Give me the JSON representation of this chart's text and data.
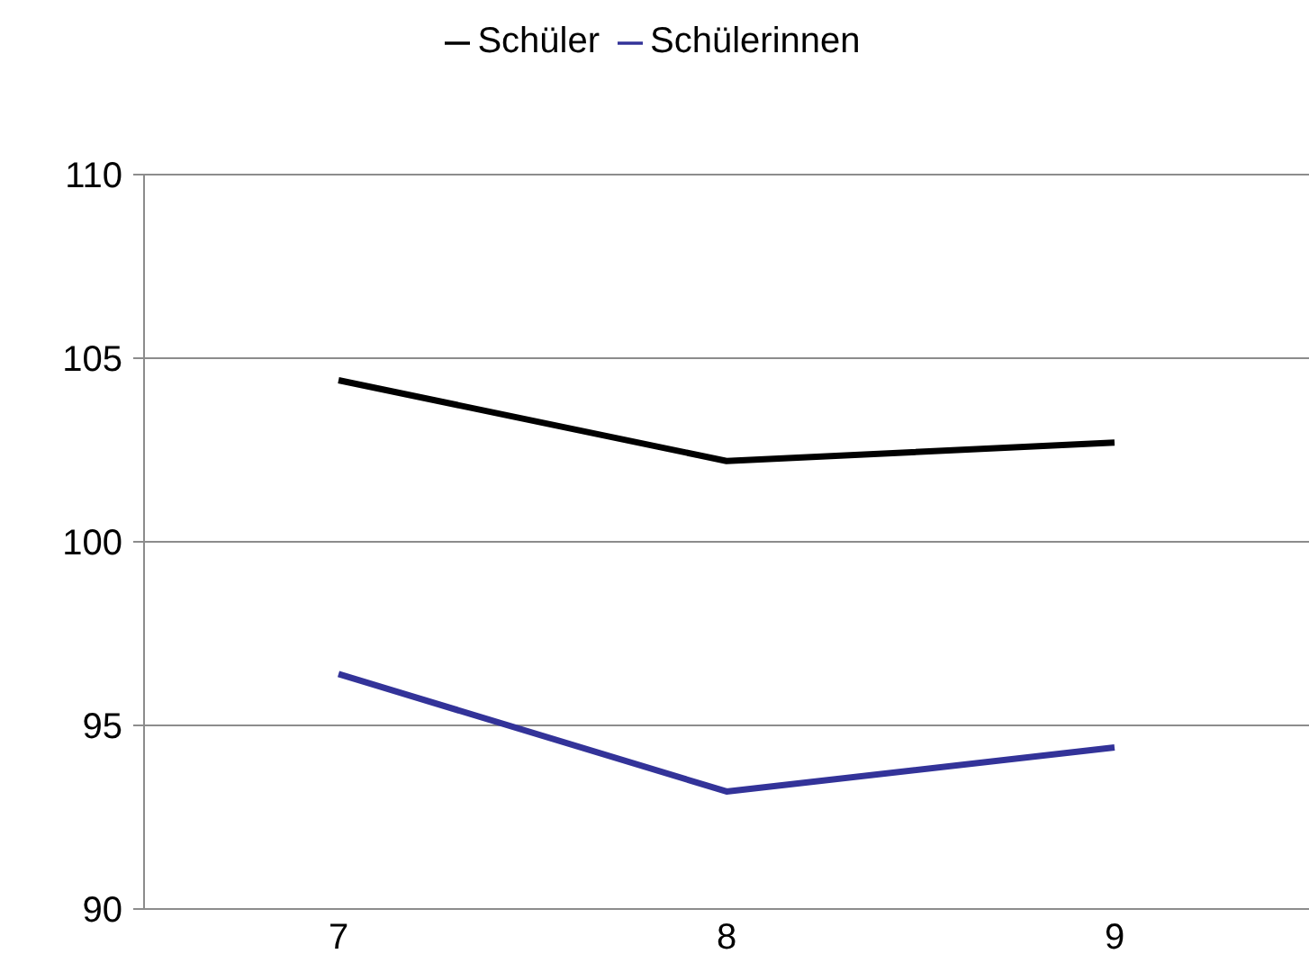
{
  "chart_data": {
    "type": "line",
    "categories": [
      "7",
      "8",
      "9"
    ],
    "series": [
      {
        "name": "Schüler",
        "color": "#000000",
        "values": [
          104.4,
          102.2,
          102.7
        ]
      },
      {
        "name": "Schülerinnen",
        "color": "#333399",
        "values": [
          96.4,
          93.2,
          94.4
        ]
      }
    ],
    "ylim": [
      90,
      110
    ],
    "yticks": [
      90,
      95,
      100,
      105,
      110
    ],
    "grid": "y",
    "legend": "top",
    "marker": "none"
  }
}
